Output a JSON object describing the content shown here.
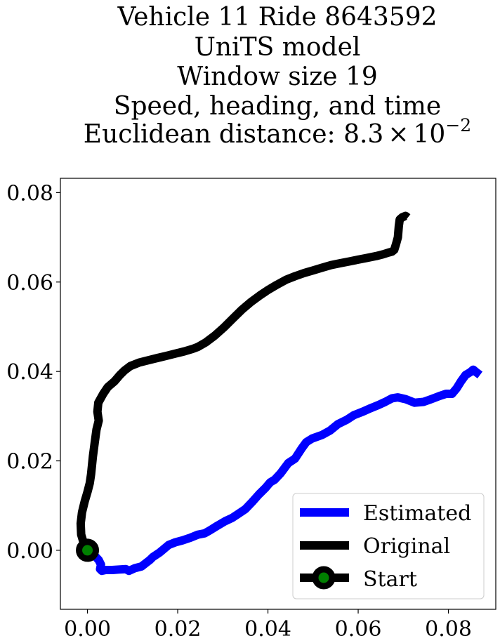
{
  "chart_data": {
    "type": "line",
    "title_lines": [
      "Vehicle 11 Ride 8643592",
      "UniTS model",
      "Window size 19",
      "Speed, heading, and time"
    ],
    "title_distance_prefix": "Euclidean distance: 8.3",
    "title_distance_times": "×",
    "title_distance_base": "10",
    "title_distance_exp": "−2",
    "xlim": [
      -0.006,
      0.0905
    ],
    "ylim": [
      -0.0132,
      0.0832
    ],
    "xticks": [
      0.0,
      0.02,
      0.04,
      0.06,
      0.08
    ],
    "xtick_labels": [
      "0.00",
      "0.02",
      "0.04",
      "0.06",
      "0.08"
    ],
    "yticks": [
      0.0,
      0.02,
      0.04,
      0.06,
      0.08
    ],
    "ytick_labels": [
      "0.00",
      "0.02",
      "0.04",
      "0.06",
      "0.08"
    ],
    "grid": false,
    "legend_position": "lower-right",
    "series": [
      {
        "name": "Estimated",
        "color": "#0000ff",
        "x": [
          0.0,
          0.0012,
          0.0025,
          0.003,
          0.0028,
          0.0032,
          0.004,
          0.0055,
          0.007,
          0.0085,
          0.0092,
          0.0105,
          0.012,
          0.013,
          0.0138,
          0.0145,
          0.016,
          0.018,
          0.0195,
          0.021,
          0.0228,
          0.0245,
          0.026,
          0.0272,
          0.0288,
          0.0305,
          0.032,
          0.0335,
          0.035,
          0.0365,
          0.038,
          0.0395,
          0.0405,
          0.0415,
          0.0428,
          0.0445,
          0.046,
          0.0475,
          0.0485,
          0.0498,
          0.052,
          0.0538,
          0.0555,
          0.0575,
          0.059,
          0.061,
          0.0628,
          0.0645,
          0.066,
          0.0675,
          0.0688,
          0.0705,
          0.0725,
          0.0745,
          0.0762,
          0.078,
          0.0795,
          0.0808,
          0.0818,
          0.0828,
          0.0838,
          0.0848,
          0.0855,
          0.0862,
          0.087
        ],
        "y": [
          0.0,
          -0.0008,
          -0.0022,
          -0.0032,
          -0.0042,
          -0.0046,
          -0.0044,
          -0.0044,
          -0.0043,
          -0.0042,
          -0.0046,
          -0.004,
          -0.0036,
          -0.0028,
          -0.0022,
          -0.0015,
          -0.0005,
          0.0012,
          0.0018,
          0.0022,
          0.0028,
          0.0035,
          0.0038,
          0.0045,
          0.0055,
          0.0065,
          0.0072,
          0.0082,
          0.0092,
          0.0108,
          0.0125,
          0.014,
          0.0152,
          0.0158,
          0.0172,
          0.0195,
          0.0205,
          0.0228,
          0.0242,
          0.025,
          0.0258,
          0.0268,
          0.0282,
          0.0292,
          0.0302,
          0.031,
          0.0318,
          0.0325,
          0.0332,
          0.034,
          0.0342,
          0.0338,
          0.033,
          0.0332,
          0.0338,
          0.0345,
          0.035,
          0.035,
          0.0362,
          0.0378,
          0.0392,
          0.0398,
          0.0404,
          0.0398,
          0.0392
        ]
      },
      {
        "name": "Original",
        "color": "#000000",
        "x": [
          0.0,
          -0.0008,
          -0.0014,
          -0.0015,
          -0.0012,
          -0.0006,
          0.0,
          0.0005,
          0.0008,
          0.0012,
          0.0016,
          0.002,
          0.0025,
          0.0022,
          0.0024,
          0.0035,
          0.0045,
          0.006,
          0.0072,
          0.0082,
          0.0095,
          0.0115,
          0.0135,
          0.0155,
          0.0175,
          0.0195,
          0.0215,
          0.0232,
          0.0245,
          0.0262,
          0.0282,
          0.0302,
          0.0322,
          0.0342,
          0.0362,
          0.0382,
          0.04,
          0.042,
          0.044,
          0.046,
          0.048,
          0.05,
          0.052,
          0.054,
          0.056,
          0.058,
          0.06,
          0.062,
          0.064,
          0.0655,
          0.0668,
          0.0675,
          0.068,
          0.0684,
          0.0688,
          0.069,
          0.0692,
          0.0698,
          0.0705,
          0.071
        ],
        "y": [
          0.0,
          0.0015,
          0.0035,
          0.006,
          0.0085,
          0.011,
          0.013,
          0.015,
          0.017,
          0.021,
          0.024,
          0.027,
          0.029,
          0.031,
          0.033,
          0.035,
          0.0365,
          0.0378,
          0.0392,
          0.0402,
          0.0412,
          0.042,
          0.0425,
          0.043,
          0.0435,
          0.044,
          0.0445,
          0.045,
          0.0455,
          0.0465,
          0.048,
          0.0498,
          0.0518,
          0.0538,
          0.0555,
          0.057,
          0.0582,
          0.0594,
          0.0605,
          0.0613,
          0.062,
          0.0626,
          0.0632,
          0.0638,
          0.0642,
          0.0646,
          0.065,
          0.0654,
          0.0658,
          0.0662,
          0.0666,
          0.0668,
          0.0672,
          0.0685,
          0.07,
          0.0725,
          0.074,
          0.0745,
          0.0748,
          0.0744
        ]
      }
    ],
    "start_marker": {
      "x": 0.0,
      "y": 0.0,
      "edge_color": "#000000",
      "face_color": "#008000"
    },
    "legend_entries": [
      "Estimated",
      "Original",
      "Start"
    ]
  }
}
